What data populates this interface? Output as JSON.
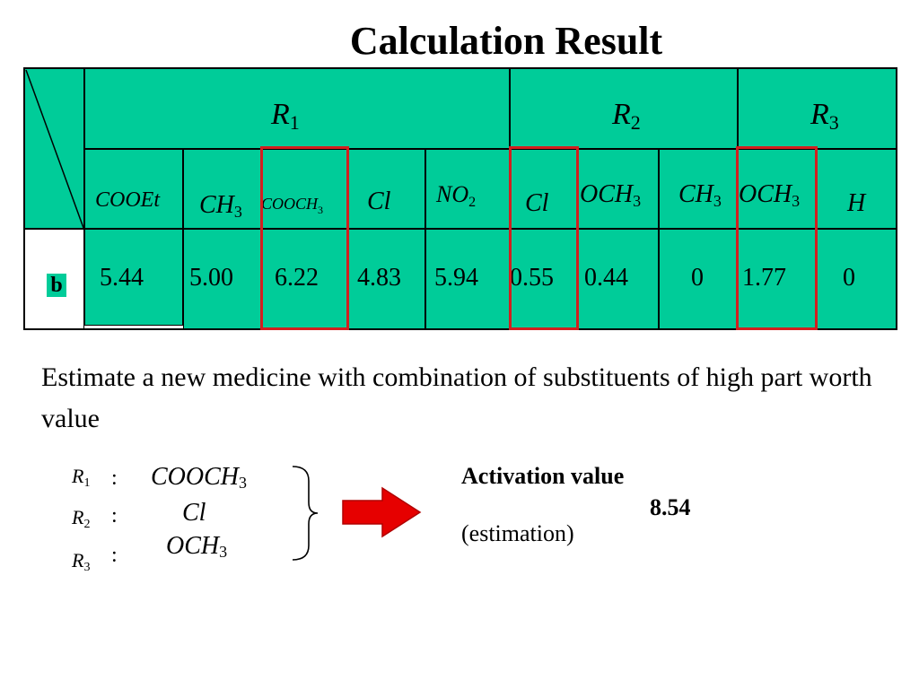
{
  "title": "Calculation Result",
  "table": {
    "groups": [
      {
        "symbol": "R",
        "sub": "1"
      },
      {
        "symbol": "R",
        "sub": "2"
      },
      {
        "symbol": "R",
        "sub": "3"
      }
    ],
    "substituents": [
      {
        "main": "COOEt",
        "sub": ""
      },
      {
        "main": "CH",
        "sub": "3"
      },
      {
        "main": "COOCH",
        "sub": "3"
      },
      {
        "main": "Cl",
        "sub": ""
      },
      {
        "main": "NO",
        "sub": "2"
      },
      {
        "main": "Cl",
        "sub": ""
      },
      {
        "main": "OCH",
        "sub": "3"
      },
      {
        "main": "CH",
        "sub": "3"
      },
      {
        "main": "OCH",
        "sub": "3"
      },
      {
        "main": "H",
        "sub": ""
      }
    ],
    "row_label": "b",
    "values": [
      "5.44",
      "5.00",
      "6.22",
      "4.83",
      "5.94",
      "0.55",
      "0.44",
      "0",
      "1.77",
      "0"
    ]
  },
  "description": "Estimate a new medicine with combination of substituents of high part worth value",
  "combination": [
    {
      "symbol": "R",
      "sub": "1",
      "colon": ":",
      "main": "COOCH",
      "main_sub": "3"
    },
    {
      "symbol": "R",
      "sub": "2",
      "colon": ":",
      "main": "Cl",
      "main_sub": ""
    },
    {
      "symbol": "R",
      "sub": "3",
      "colon": ":",
      "main": "OCH",
      "main_sub": "3"
    }
  ],
  "activation": {
    "label": "Activation value",
    "value": "8.54",
    "note": "(estimation)"
  },
  "colors": {
    "table_fill": "#00cc99",
    "highlight": "#d21f1f",
    "arrow": "#e60000"
  }
}
